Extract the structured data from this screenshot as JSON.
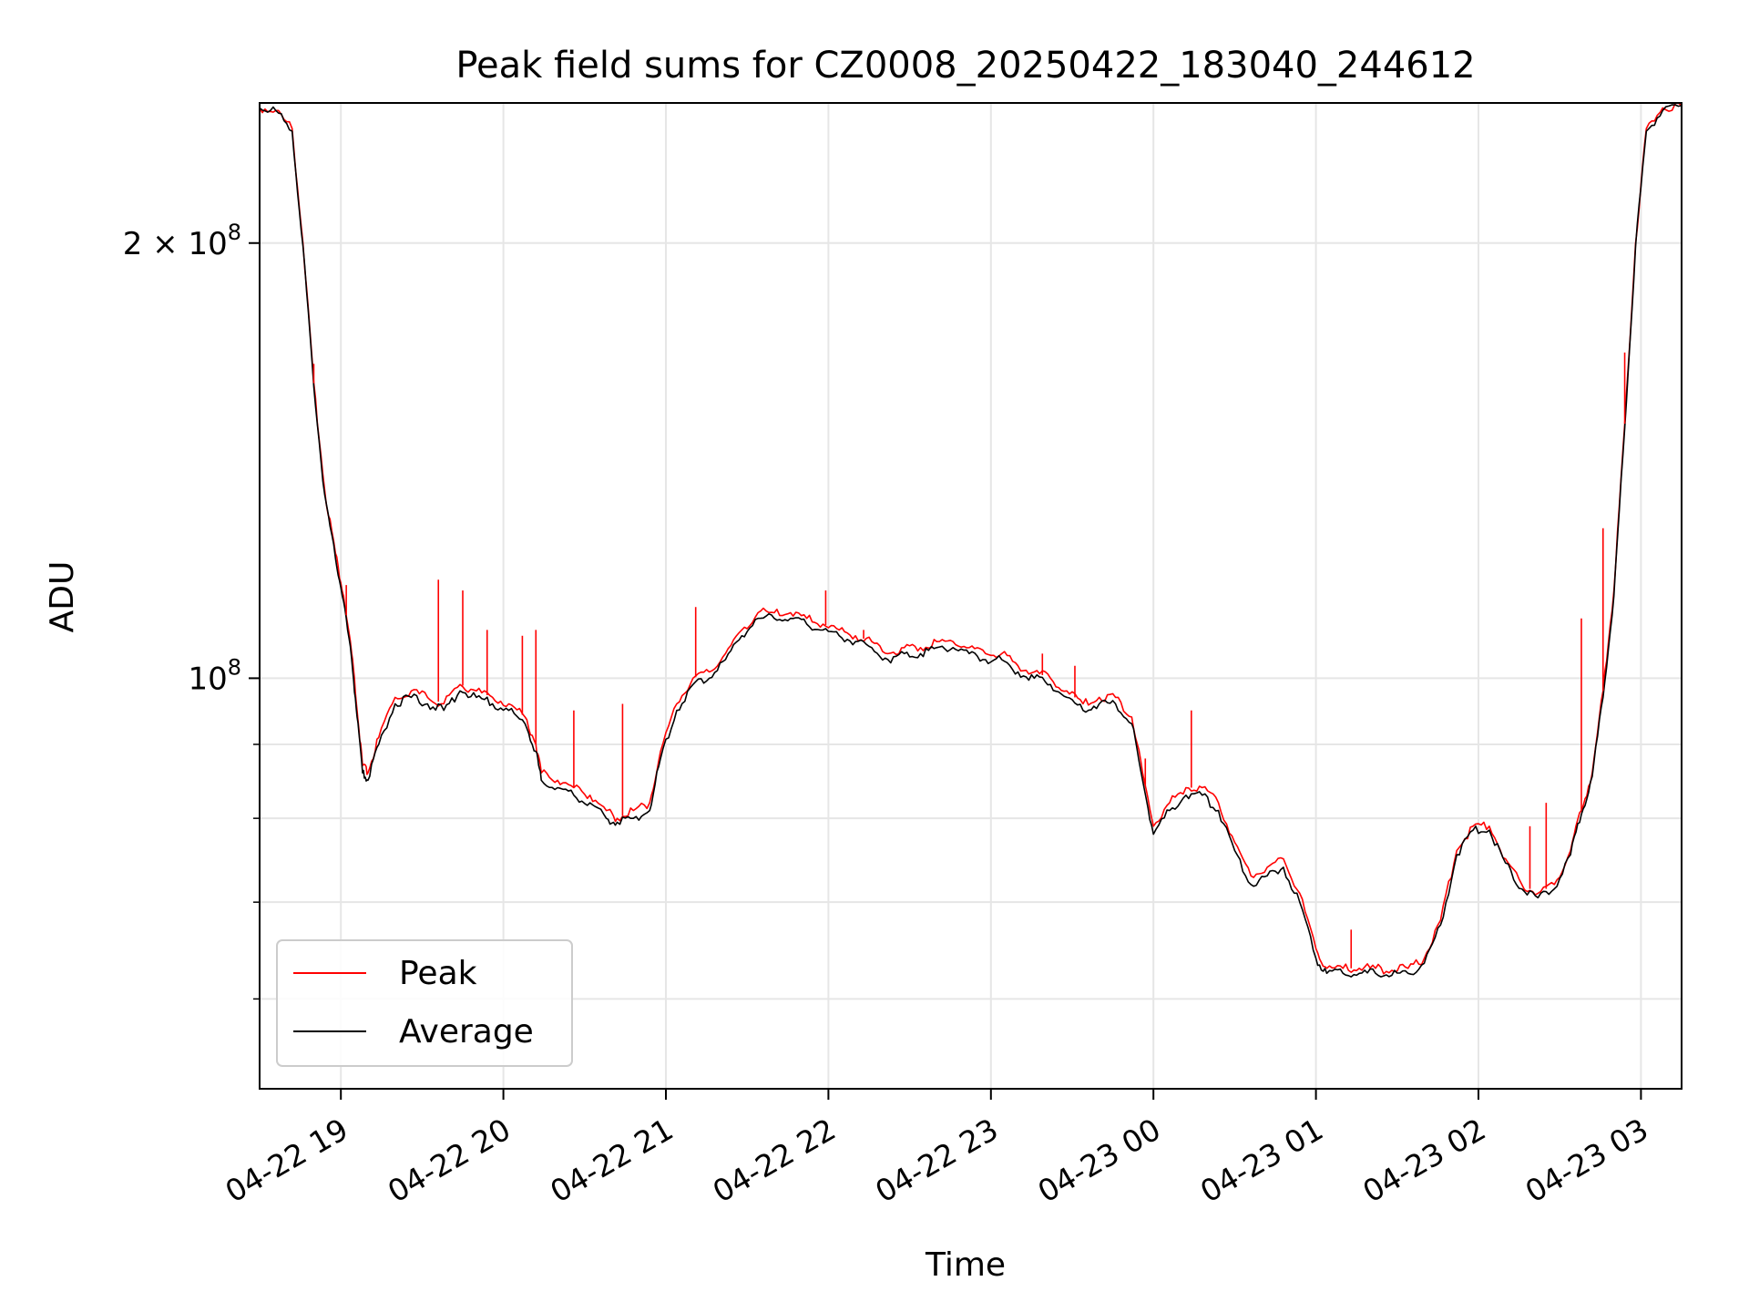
{
  "chart_data": {
    "type": "line",
    "title": "Peak field sums for CZ0008_20250422_183040_244612",
    "xlabel": "Time",
    "ylabel": "ADU",
    "yscale": "log",
    "grid": true,
    "legend_position": "lower-left",
    "xlim": [
      "2025-04-22 18:30",
      "2025-04-23 03:15"
    ],
    "ylim": [
      52000000,
      250000000
    ],
    "x_ticks": [
      {
        "value": "2025-04-22 19:00",
        "label": "04-22 19"
      },
      {
        "value": "2025-04-22 20:00",
        "label": "04-22 20"
      },
      {
        "value": "2025-04-22 21:00",
        "label": "04-22 21"
      },
      {
        "value": "2025-04-22 22:00",
        "label": "04-22 22"
      },
      {
        "value": "2025-04-22 23:00",
        "label": "04-22 23"
      },
      {
        "value": "2025-04-23 00:00",
        "label": "04-23 00"
      },
      {
        "value": "2025-04-23 01:00",
        "label": "04-23 01"
      },
      {
        "value": "2025-04-23 02:00",
        "label": "04-23 02"
      },
      {
        "value": "2025-04-23 03:00",
        "label": "04-23 03"
      }
    ],
    "y_major_ticks": [
      {
        "value": 100000000,
        "base": "10",
        "exp": "8"
      },
      {
        "value": 200000000,
        "mantissa": "2",
        "base": "10",
        "exp": "8"
      }
    ],
    "y_minor_ticks": [
      60000000,
      70000000,
      80000000,
      90000000
    ],
    "series": [
      {
        "name": "Peak",
        "color": "#ff0000",
        "x": [
          "2025-04-22 18:30",
          "2025-04-22 18:36",
          "2025-04-22 18:42",
          "2025-04-22 18:46",
          "2025-04-22 18:50",
          "2025-04-22 18:54",
          "2025-04-22 18:58",
          "2025-04-22 19:01",
          "2025-04-22 19:04",
          "2025-04-22 19:06",
          "2025-04-22 19:08",
          "2025-04-22 19:10",
          "2025-04-22 19:14",
          "2025-04-22 19:20",
          "2025-04-22 19:26",
          "2025-04-22 19:32",
          "2025-04-22 19:38",
          "2025-04-22 19:44",
          "2025-04-22 19:50",
          "2025-04-22 19:56",
          "2025-04-22 20:02",
          "2025-04-22 20:08",
          "2025-04-22 20:12",
          "2025-04-22 20:14",
          "2025-04-22 20:20",
          "2025-04-22 20:26",
          "2025-04-22 20:32",
          "2025-04-22 20:38",
          "2025-04-22 20:42",
          "2025-04-22 20:48",
          "2025-04-22 20:54",
          "2025-04-22 20:58",
          "2025-04-22 21:04",
          "2025-04-22 21:10",
          "2025-04-22 21:16",
          "2025-04-22 21:22",
          "2025-04-22 21:28",
          "2025-04-22 21:34",
          "2025-04-22 21:40",
          "2025-04-22 21:46",
          "2025-04-22 21:52",
          "2025-04-22 21:58",
          "2025-04-22 22:04",
          "2025-04-22 22:10",
          "2025-04-22 22:16",
          "2025-04-22 22:22",
          "2025-04-22 22:28",
          "2025-04-22 22:34",
          "2025-04-22 22:40",
          "2025-04-22 22:46",
          "2025-04-22 22:52",
          "2025-04-22 22:58",
          "2025-04-22 23:04",
          "2025-04-22 23:10",
          "2025-04-22 23:16",
          "2025-04-22 23:22",
          "2025-04-22 23:28",
          "2025-04-22 23:34",
          "2025-04-22 23:40",
          "2025-04-22 23:46",
          "2025-04-22 23:52",
          "2025-04-22 23:56",
          "2025-04-23 00:00",
          "2025-04-23 00:06",
          "2025-04-23 00:12",
          "2025-04-23 00:18",
          "2025-04-23 00:24",
          "2025-04-23 00:30",
          "2025-04-23 00:36",
          "2025-04-23 00:42",
          "2025-04-23 00:48",
          "2025-04-23 00:54",
          "2025-04-23 01:00",
          "2025-04-23 01:04",
          "2025-04-23 01:10",
          "2025-04-23 01:16",
          "2025-04-23 01:22",
          "2025-04-23 01:28",
          "2025-04-23 01:34",
          "2025-04-23 01:40",
          "2025-04-23 01:46",
          "2025-04-23 01:52",
          "2025-04-23 01:58",
          "2025-04-23 02:04",
          "2025-04-23 02:10",
          "2025-04-23 02:16",
          "2025-04-23 02:22",
          "2025-04-23 02:28",
          "2025-04-23 02:34",
          "2025-04-23 02:38",
          "2025-04-23 02:42",
          "2025-04-23 02:46",
          "2025-04-23 02:50",
          "2025-04-23 02:54",
          "2025-04-23 02:58",
          "2025-04-23 03:02",
          "2025-04-23 03:08",
          "2025-04-23 03:15"
        ],
        "values": [
          248000000,
          247000000,
          240000000,
          200000000,
          160000000,
          135000000,
          122000000,
          114000000,
          104000000,
          95000000,
          87000000,
          86000000,
          91000000,
          97000000,
          98000000,
          97000000,
          96000000,
          99000000,
          98000000,
          97000000,
          96000000,
          94000000,
          90000000,
          86000000,
          85000000,
          84000000,
          83000000,
          81000000,
          80000000,
          81000000,
          82000000,
          89000000,
          96000000,
          100000000,
          101000000,
          104000000,
          108000000,
          111000000,
          111000000,
          111000000,
          110000000,
          109000000,
          108000000,
          107000000,
          106000000,
          104000000,
          105000000,
          105000000,
          106000000,
          106000000,
          105000000,
          104000000,
          104000000,
          102000000,
          101000000,
          100000000,
          98000000,
          96000000,
          97000000,
          97000000,
          94000000,
          86000000,
          79000000,
          82000000,
          84000000,
          84000000,
          82000000,
          77000000,
          73000000,
          74000000,
          75000000,
          71000000,
          65000000,
          63000000,
          63000000,
          63000000,
          63000000,
          62800000,
          63000000,
          64000000,
          68000000,
          76000000,
          79000000,
          79000000,
          75000000,
          72000000,
          71000000,
          72000000,
          76000000,
          81000000,
          86000000,
          98000000,
          115000000,
          150000000,
          200000000,
          240000000,
          248000000,
          249000000
        ]
      },
      {
        "name": "Average",
        "color": "#000000",
        "x": [
          "2025-04-22 18:30",
          "2025-04-22 18:36",
          "2025-04-22 18:42",
          "2025-04-22 18:46",
          "2025-04-22 18:50",
          "2025-04-22 18:54",
          "2025-04-22 18:58",
          "2025-04-22 19:01",
          "2025-04-22 19:04",
          "2025-04-22 19:06",
          "2025-04-22 19:08",
          "2025-04-22 19:10",
          "2025-04-22 19:14",
          "2025-04-22 19:20",
          "2025-04-22 19:26",
          "2025-04-22 19:32",
          "2025-04-22 19:38",
          "2025-04-22 19:44",
          "2025-04-22 19:50",
          "2025-04-22 19:56",
          "2025-04-22 20:02",
          "2025-04-22 20:08",
          "2025-04-22 20:12",
          "2025-04-22 20:14",
          "2025-04-22 20:20",
          "2025-04-22 20:26",
          "2025-04-22 20:32",
          "2025-04-22 20:38",
          "2025-04-22 20:42",
          "2025-04-22 20:48",
          "2025-04-22 20:54",
          "2025-04-22 20:58",
          "2025-04-22 21:04",
          "2025-04-22 21:10",
          "2025-04-22 21:16",
          "2025-04-22 21:22",
          "2025-04-22 21:28",
          "2025-04-22 21:34",
          "2025-04-22 21:40",
          "2025-04-22 21:46",
          "2025-04-22 21:52",
          "2025-04-22 21:58",
          "2025-04-22 22:04",
          "2025-04-22 22:10",
          "2025-04-22 22:16",
          "2025-04-22 22:22",
          "2025-04-22 22:28",
          "2025-04-22 22:34",
          "2025-04-22 22:40",
          "2025-04-22 22:46",
          "2025-04-22 22:52",
          "2025-04-22 22:58",
          "2025-04-22 23:04",
          "2025-04-22 23:10",
          "2025-04-22 23:16",
          "2025-04-22 23:22",
          "2025-04-22 23:28",
          "2025-04-22 23:34",
          "2025-04-22 23:40",
          "2025-04-22 23:46",
          "2025-04-22 23:52",
          "2025-04-22 23:56",
          "2025-04-23 00:00",
          "2025-04-23 00:06",
          "2025-04-23 00:12",
          "2025-04-23 00:18",
          "2025-04-23 00:24",
          "2025-04-23 00:30",
          "2025-04-23 00:36",
          "2025-04-23 00:42",
          "2025-04-23 00:48",
          "2025-04-23 00:54",
          "2025-04-23 01:00",
          "2025-04-23 01:04",
          "2025-04-23 01:10",
          "2025-04-23 01:16",
          "2025-04-23 01:22",
          "2025-04-23 01:28",
          "2025-04-23 01:34",
          "2025-04-23 01:40",
          "2025-04-23 01:46",
          "2025-04-23 01:52",
          "2025-04-23 01:58",
          "2025-04-23 02:04",
          "2025-04-23 02:10",
          "2025-04-23 02:16",
          "2025-04-23 02:22",
          "2025-04-23 02:28",
          "2025-04-23 02:34",
          "2025-04-23 02:38",
          "2025-04-23 02:42",
          "2025-04-23 02:46",
          "2025-04-23 02:50",
          "2025-04-23 02:54",
          "2025-04-23 02:58",
          "2025-04-23 03:02",
          "2025-04-23 03:08",
          "2025-04-23 03:15"
        ],
        "values": [
          248000000,
          247000000,
          239000000,
          199000000,
          159000000,
          134000000,
          121000000,
          113000000,
          103000000,
          94000000,
          86000000,
          85000000,
          90000000,
          96000000,
          97000000,
          96000000,
          95000000,
          98000000,
          97000000,
          96000000,
          95000000,
          93000000,
          89000000,
          85000000,
          84000000,
          83000000,
          82000000,
          80000000,
          79500000,
          80000000,
          81000000,
          88000000,
          95000000,
          99000000,
          100000000,
          103000000,
          107000000,
          110000000,
          110000000,
          110000000,
          109000000,
          108000000,
          107000000,
          106000000,
          105000000,
          103000000,
          104000000,
          104000000,
          105000000,
          105000000,
          104000000,
          103000000,
          103000000,
          101000000,
          100000000,
          99000000,
          97000000,
          95000000,
          96000000,
          96000000,
          93000000,
          85000000,
          78000000,
          81000000,
          83000000,
          83000000,
          81000000,
          76000000,
          72000000,
          73000000,
          74000000,
          70000000,
          64000000,
          62500000,
          62500000,
          62500000,
          62500000,
          62300000,
          62500000,
          63500000,
          67500000,
          75500000,
          78500000,
          78500000,
          74500000,
          71500000,
          70500000,
          71500000,
          75500000,
          80500000,
          85500000,
          97000000,
          114000000,
          149000000,
          199000000,
          239000000,
          247000000,
          249000000
        ]
      }
    ],
    "peak_spikes": [
      {
        "x": "2025-04-22 18:50",
        "value": 165000000
      },
      {
        "x": "2025-04-22 19:02",
        "value": 116000000
      },
      {
        "x": "2025-04-22 19:36",
        "value": 117000000
      },
      {
        "x": "2025-04-22 19:45",
        "value": 115000000
      },
      {
        "x": "2025-04-22 19:54",
        "value": 108000000
      },
      {
        "x": "2025-04-22 20:07",
        "value": 107000000
      },
      {
        "x": "2025-04-22 20:12",
        "value": 108000000
      },
      {
        "x": "2025-04-22 20:26",
        "value": 95000000
      },
      {
        "x": "2025-04-22 20:44",
        "value": 96000000
      },
      {
        "x": "2025-04-22 21:11",
        "value": 112000000
      },
      {
        "x": "2025-04-22 21:59",
        "value": 115000000
      },
      {
        "x": "2025-04-22 22:13",
        "value": 108000000
      },
      {
        "x": "2025-04-22 23:19",
        "value": 104000000
      },
      {
        "x": "2025-04-22 23:31",
        "value": 102000000
      },
      {
        "x": "2025-04-22 23:57",
        "value": 88000000
      },
      {
        "x": "2025-04-23 00:14",
        "value": 95000000
      },
      {
        "x": "2025-04-23 01:13",
        "value": 67000000
      },
      {
        "x": "2025-04-23 02:19",
        "value": 79000000
      },
      {
        "x": "2025-04-23 02:25",
        "value": 82000000
      },
      {
        "x": "2025-04-23 02:38",
        "value": 110000000
      },
      {
        "x": "2025-04-23 02:46",
        "value": 127000000
      },
      {
        "x": "2025-04-23 02:54",
        "value": 168000000
      }
    ]
  }
}
